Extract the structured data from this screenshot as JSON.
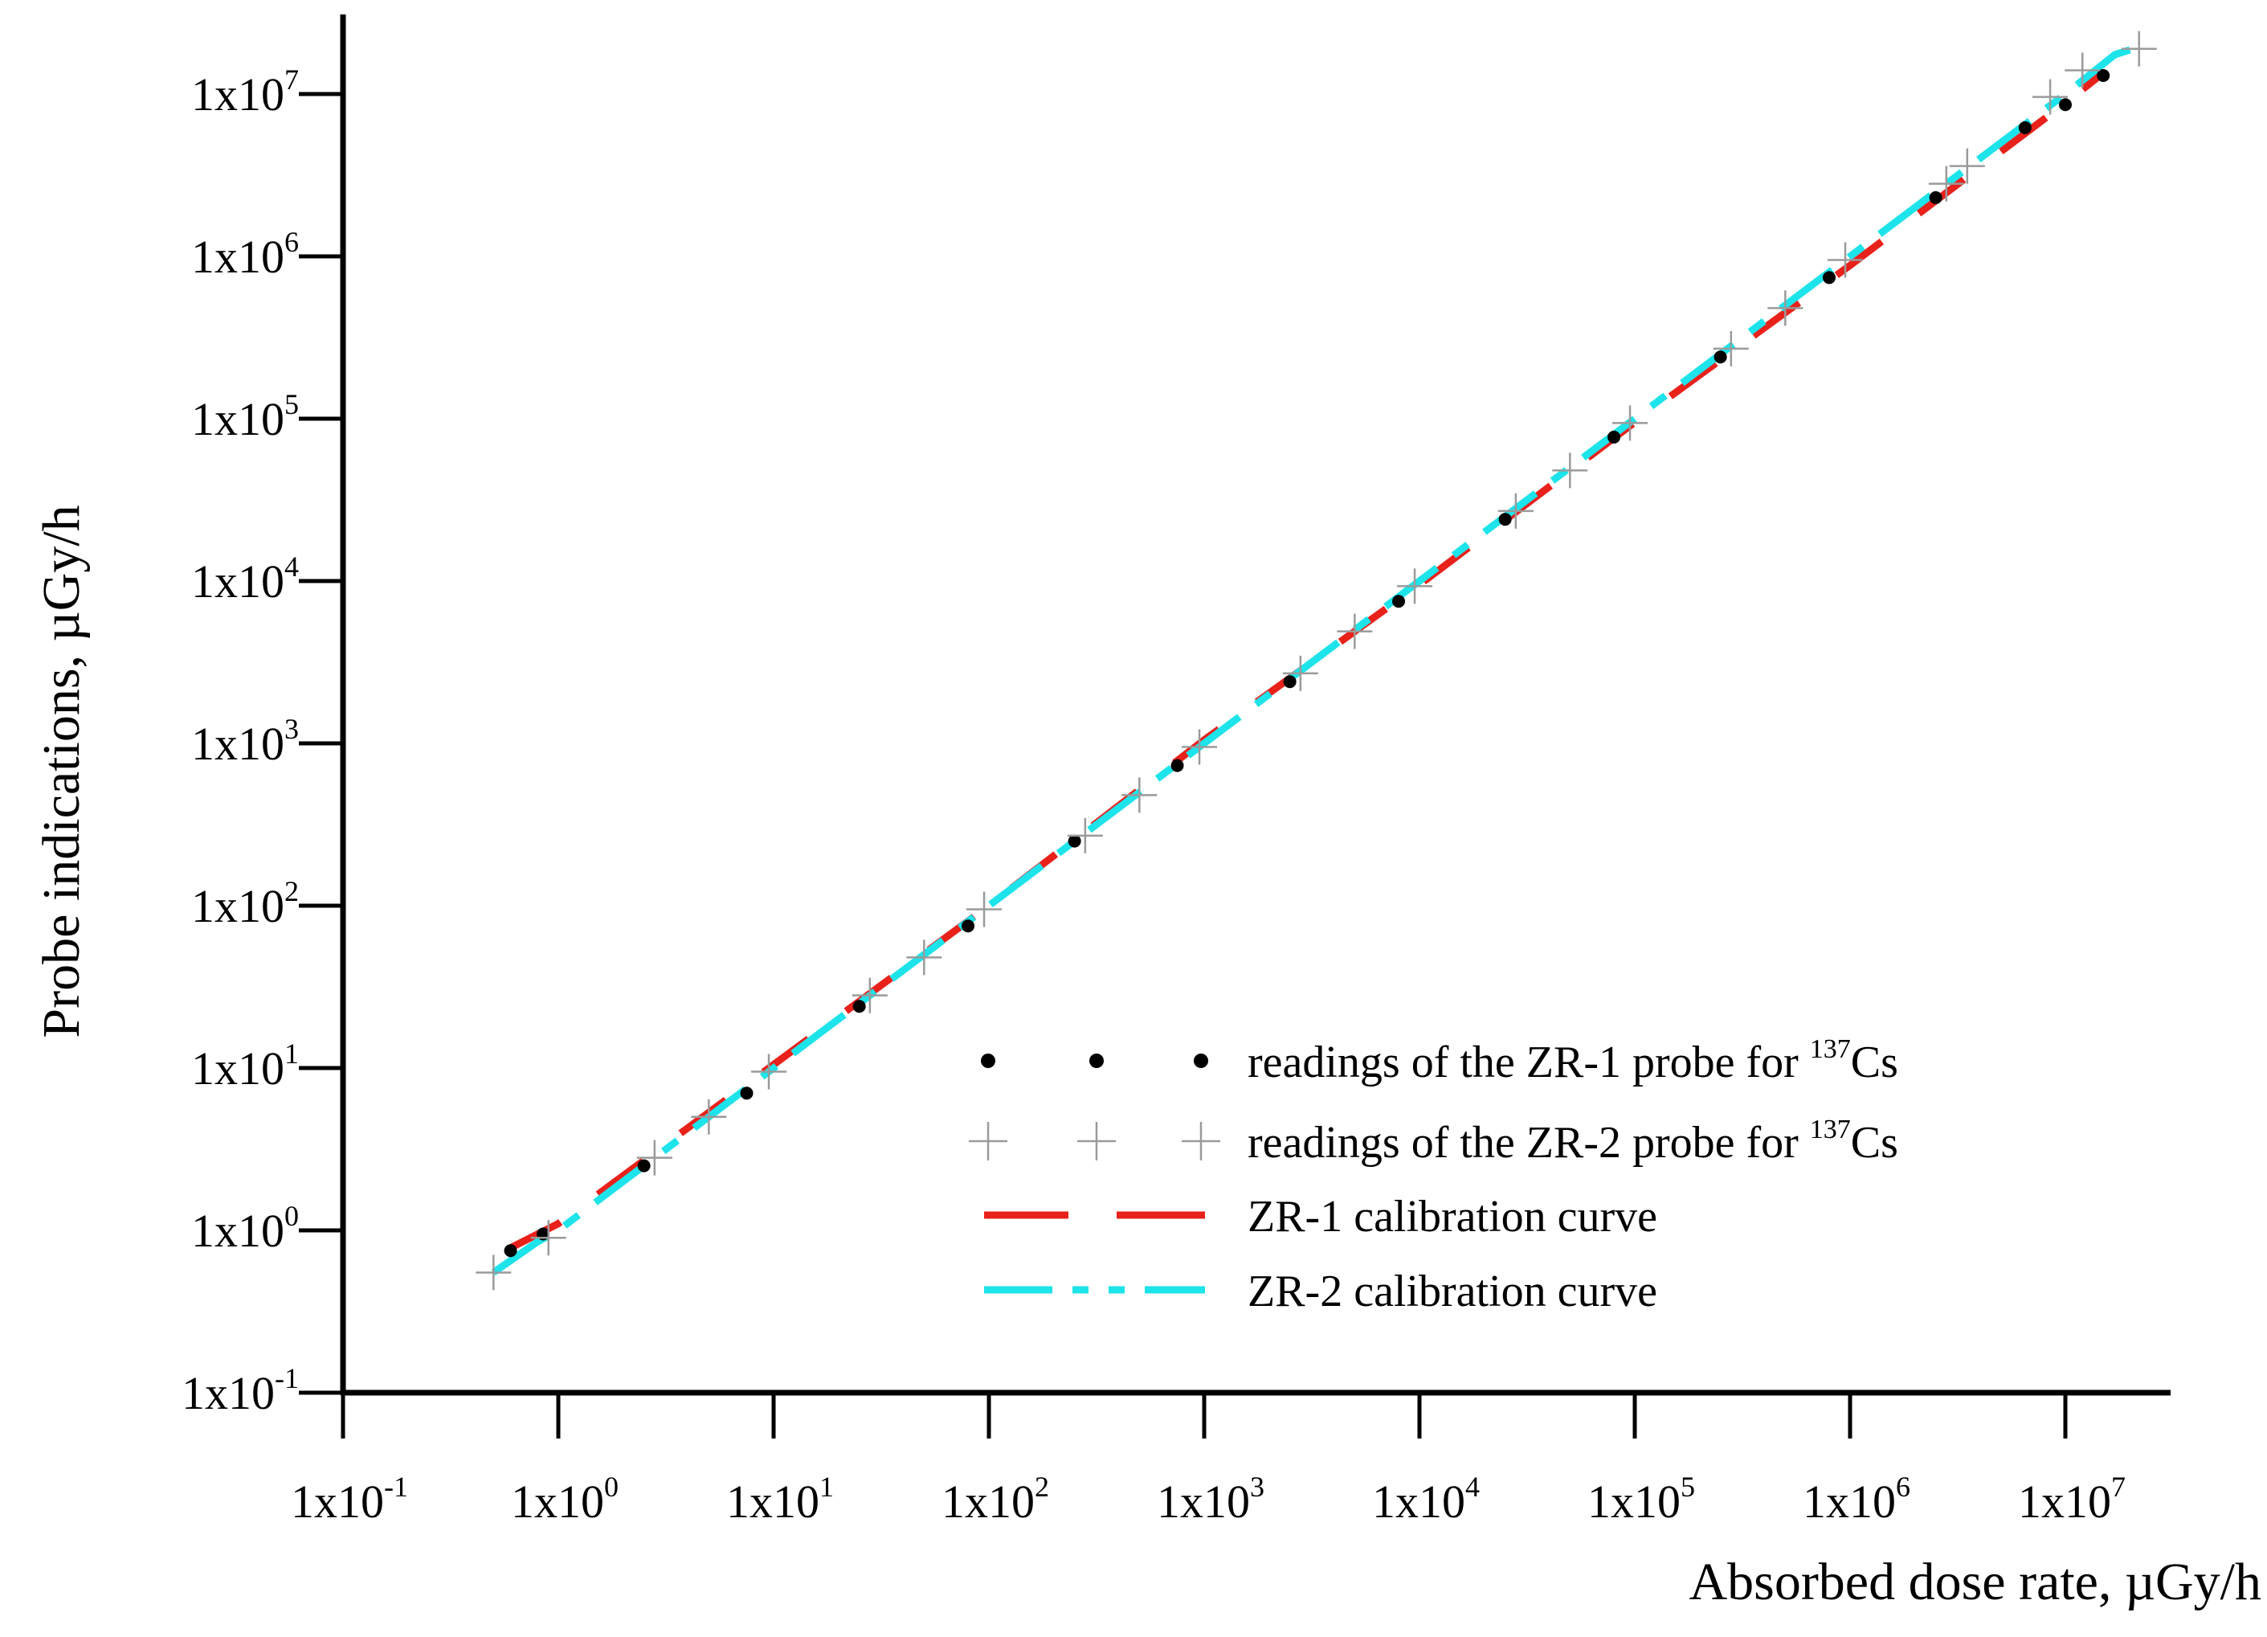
{
  "chart_data": {
    "type": "scatter",
    "scale": {
      "x": "log10",
      "y": "log10"
    },
    "title": "",
    "xlabel": "Absorbed dose rate, µGy/h",
    "ylabel": "Probe indications, µGy/h",
    "xlim_exp": [
      -1,
      7.6
    ],
    "ylim_exp": [
      -1,
      7.4
    ],
    "x_ticks": [
      {
        "base": "1x10",
        "exp": "-1",
        "value": -1
      },
      {
        "base": "1x10",
        "exp": "0",
        "value": 0
      },
      {
        "base": "1x10",
        "exp": "1",
        "value": 1
      },
      {
        "base": "1x10",
        "exp": "2",
        "value": 2
      },
      {
        "base": "1x10",
        "exp": "3",
        "value": 3
      },
      {
        "base": "1x10",
        "exp": "4",
        "value": 4
      },
      {
        "base": "1x10",
        "exp": "5",
        "value": 5
      },
      {
        "base": "1x10",
        "exp": "6",
        "value": 6
      },
      {
        "base": "1x10",
        "exp": "7",
        "value": 7
      }
    ],
    "y_ticks": [
      {
        "base": "1x10",
        "exp": "-1",
        "value": -1
      },
      {
        "base": "1x10",
        "exp": "0",
        "value": 0
      },
      {
        "base": "1x10",
        "exp": "1",
        "value": 1
      },
      {
        "base": "1x10",
        "exp": "2",
        "value": 2
      },
      {
        "base": "1x10",
        "exp": "3",
        "value": 3
      },
      {
        "base": "1x10",
        "exp": "4",
        "value": 4
      },
      {
        "base": "1x10",
        "exp": "5",
        "value": 5
      },
      {
        "base": "1x10",
        "exp": "6",
        "value": 6
      },
      {
        "base": "1x10",
        "exp": "7",
        "value": 7
      }
    ],
    "series": [
      {
        "name": "readings of the ZR-1 probe for 137Cs",
        "kind": "points",
        "marker": "dot",
        "color": "#000000",
        "x": [
          0.6,
          0.85,
          2.5,
          7.5,
          25,
          80,
          250,
          750,
          2500,
          8000,
          25000,
          80000,
          250000,
          800000,
          2500000,
          6500000,
          10000000,
          15000000
        ],
        "y": [
          0.75,
          0.95,
          2.5,
          7.0,
          24,
          75,
          250,
          730,
          2400,
          7500,
          24000,
          77000,
          240000,
          740000,
          2300000,
          6200000,
          8600000,
          13000000
        ]
      },
      {
        "name": "readings of the ZR-2 probe for 137Cs",
        "kind": "points",
        "marker": "plus",
        "color": "#9a9a9a",
        "x": [
          0.5,
          0.9,
          2.8,
          5,
          9.5,
          28,
          50,
          95,
          280,
          500,
          950,
          2800,
          5000,
          9500,
          28000,
          50000,
          95000,
          280000,
          500000,
          950000,
          2800000,
          3500000,
          8500000,
          12000000,
          22000000
        ],
        "y": [
          0.55,
          0.9,
          2.8,
          5.0,
          9.5,
          28,
          48,
          95,
          270,
          480,
          950,
          2700,
          4900,
          9300,
          27000,
          48000,
          94000,
          270000,
          480000,
          950000,
          2800000,
          3600000,
          9600000,
          14000000,
          19000000
        ]
      },
      {
        "name": "ZR-1 calibration curve",
        "kind": "curve",
        "dash": "long-dash",
        "color": "#e8211b",
        "x": [
          0.6,
          1,
          10,
          100,
          1000,
          10000,
          100000,
          1000000,
          10000000,
          15000000
        ],
        "y": [
          0.78,
          1.1,
          10.5,
          100,
          1050,
          9500,
          95000,
          880000,
          8800000,
          13500000
        ]
      },
      {
        "name": "ZR-2 calibration curve",
        "kind": "curve",
        "dash": "long-short",
        "color": "#1de3ea",
        "x": [
          0.5,
          0.8,
          1,
          10,
          100,
          1000,
          10000,
          100000,
          1000000,
          10000000,
          17000000,
          22000000
        ],
        "y": [
          0.55,
          0.85,
          1.0,
          10,
          100,
          1000,
          10000,
          100000,
          1000000,
          10000000,
          17500000,
          19500000
        ]
      }
    ],
    "legend": {
      "placement": "bottom-right",
      "items": [
        {
          "text": "readings of the ZR-1 probe for ",
          "sup": "137",
          "tail": "Cs"
        },
        {
          "text": "readings of the ZR-2 probe for ",
          "sup": "137",
          "tail": "Cs"
        },
        {
          "text": "ZR-1 calibration curve",
          "sup": "",
          "tail": ""
        },
        {
          "text": "ZR-2 calibration curve",
          "sup": "",
          "tail": ""
        }
      ]
    }
  }
}
